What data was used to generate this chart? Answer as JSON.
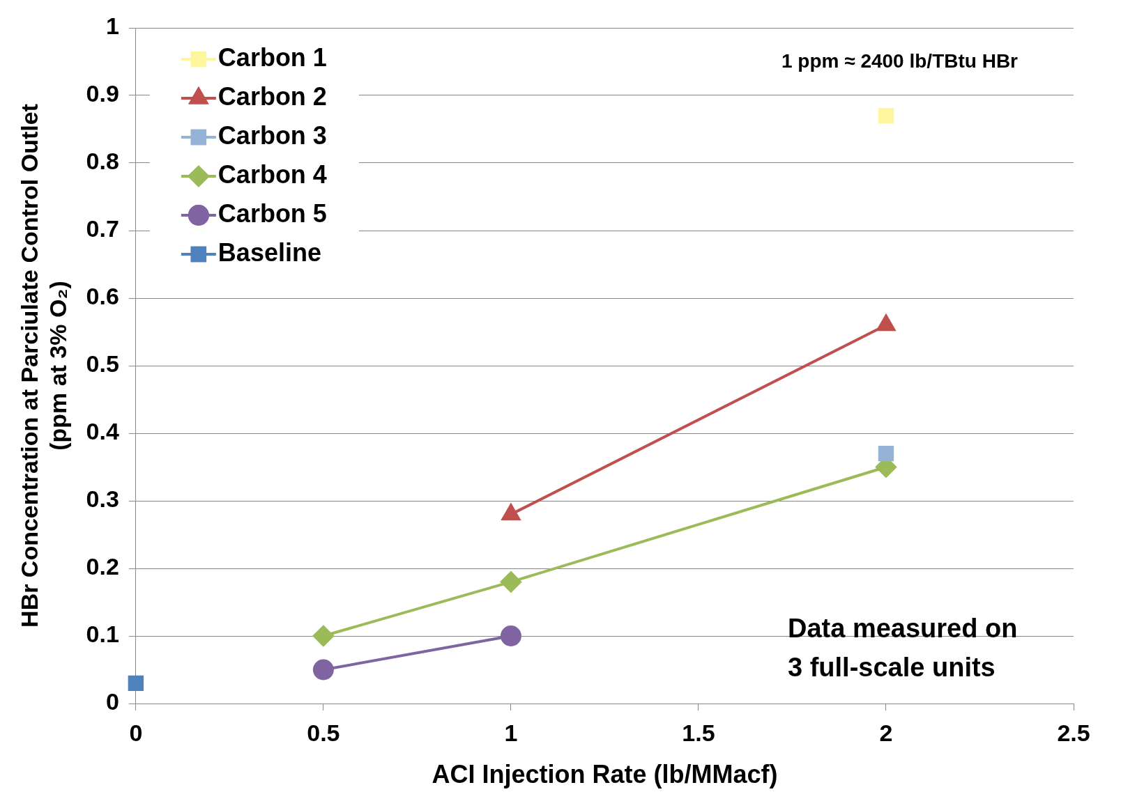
{
  "chart_data": {
    "type": "line",
    "xlabel": "ACI Injection Rate (lb/MMacf)",
    "ylabel": "HBr Concentration at Parciulate Control Outlet\n(ppm at 3% O₂)",
    "xlim": [
      0,
      2.5
    ],
    "xticks": [
      0,
      0.5,
      1,
      1.5,
      2,
      2.5
    ],
    "ylim": [
      0,
      1
    ],
    "yticks": [
      0,
      0.1,
      0.2,
      0.3,
      0.4,
      0.5,
      0.6,
      0.7,
      0.8,
      0.9,
      1
    ],
    "grid": "y",
    "legend": "top left",
    "line_style": "solid",
    "annotations": [
      "1 ppm ≈ 2400 lb/TBtu HBr",
      "Data measured on\n3 full-scale units"
    ],
    "series": [
      {
        "name": "Carbon 1",
        "color": "#fff59d",
        "marker": "square",
        "x": [
          2
        ],
        "values": [
          0.87
        ]
      },
      {
        "name": "Carbon 2",
        "color": "#c0504d",
        "marker": "triangle",
        "x": [
          1,
          2
        ],
        "values": [
          0.28,
          0.56
        ]
      },
      {
        "name": "Carbon 3",
        "color": "#95b3d7",
        "marker": "square",
        "x": [
          2
        ],
        "values": [
          0.37
        ]
      },
      {
        "name": "Carbon 4",
        "color": "#9bbb59",
        "marker": "diamond",
        "x": [
          0.5,
          1,
          2
        ],
        "values": [
          0.1,
          0.18,
          0.35
        ]
      },
      {
        "name": "Carbon 5",
        "color": "#8064a2",
        "marker": "circle",
        "x": [
          0.5,
          1
        ],
        "values": [
          0.05,
          0.1
        ]
      },
      {
        "name": "Baseline",
        "color": "#4f81bd",
        "marker": "square",
        "x": [
          0
        ],
        "values": [
          0.03
        ]
      }
    ]
  }
}
